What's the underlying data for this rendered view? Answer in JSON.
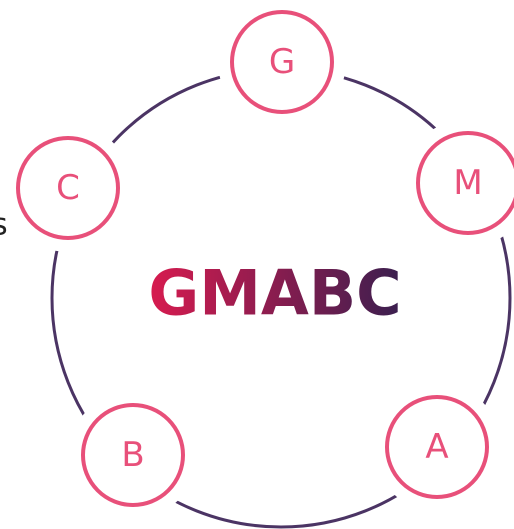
{
  "side_text": "s",
  "title": "GMABC",
  "nodes": [
    {
      "label": "G"
    },
    {
      "label": "M"
    },
    {
      "label": "C"
    },
    {
      "label": "B"
    },
    {
      "label": "A"
    }
  ]
}
